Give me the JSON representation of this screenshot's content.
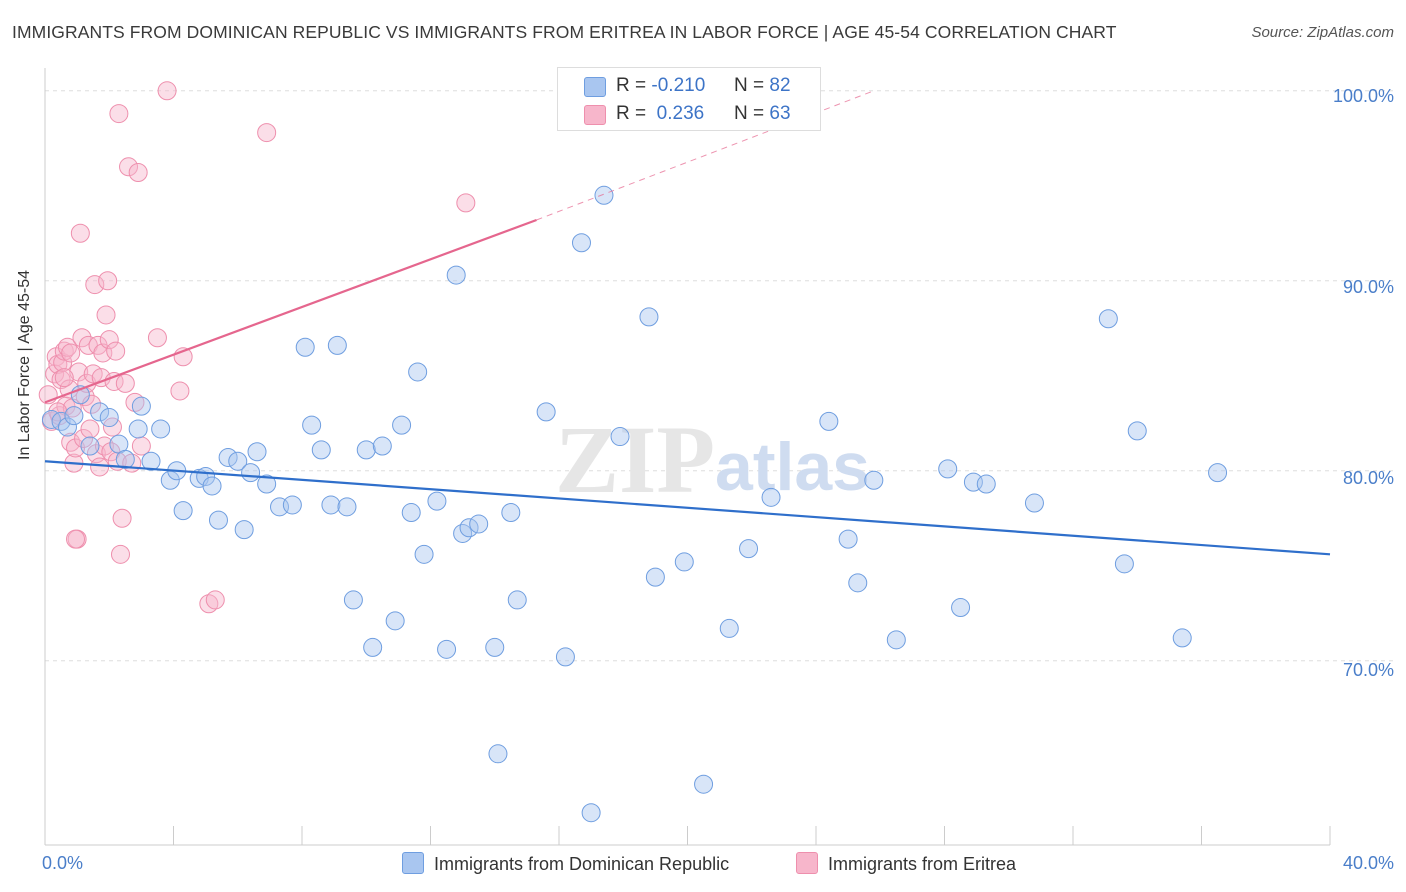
{
  "title": "IMMIGRANTS FROM DOMINICAN REPUBLIC VS IMMIGRANTS FROM ERITREA IN LABOR FORCE | AGE 45-54 CORRELATION CHART",
  "source": "Source: ZipAtlas.com",
  "watermark": {
    "zip": "ZIP",
    "atlas": "atlas"
  },
  "legend": {
    "rows": [
      {
        "r_label": "R =",
        "r_value": "-0.210",
        "n_label": "N =",
        "n_value": "82",
        "color": "#a9c6f0"
      },
      {
        "r_label": "R =",
        "r_value": "0.236",
        "n_label": "N =",
        "n_value": "63",
        "color": "#f7b6cb"
      }
    ]
  },
  "bottom_legend": {
    "series1": "Immigrants from Dominican Republic",
    "series2": "Immigrants from Eritrea"
  },
  "colors": {
    "blue_fill": "#a9c6f0",
    "blue_stroke": "#6f9ee0",
    "blue_line": "#2f6fcb",
    "pink_fill": "#f7b6cb",
    "pink_stroke": "#ee8fad",
    "pink_line": "#e5668e",
    "grid": "#dddddd",
    "tick_text": "#4a7ec9"
  },
  "chart_data": {
    "type": "scatter",
    "title": "IMMIGRANTS FROM DOMINICAN REPUBLIC VS IMMIGRANTS FROM ERITREA IN LABOR FORCE | AGE 45-54 CORRELATION CHART",
    "xlabel": "",
    "ylabel": "In Labor Force | Age 45-54",
    "xlim": [
      0,
      40
    ],
    "ylim": [
      60.3,
      101.2
    ],
    "x_tick_labels": [
      "0.0%",
      "40.0%"
    ],
    "y_ticks": [
      70,
      80,
      90,
      100
    ],
    "y_tick_labels": [
      "70.0%",
      "80.0%",
      "90.0%",
      "100.0%"
    ],
    "grid": true,
    "legend_position": "top-center",
    "series": [
      {
        "name": "Immigrants from Dominican Republic",
        "color": "#a9c6f0",
        "trend": {
          "x": [
            0,
            40
          ],
          "y": [
            80.5,
            75.6
          ],
          "style": "solid"
        },
        "points": [
          [
            0.2,
            82.7
          ],
          [
            0.5,
            82.6
          ],
          [
            0.7,
            82.3
          ],
          [
            0.9,
            82.9
          ],
          [
            1.1,
            84.0
          ],
          [
            1.4,
            81.3
          ],
          [
            1.7,
            83.1
          ],
          [
            2.0,
            82.8
          ],
          [
            2.3,
            81.4
          ],
          [
            2.5,
            80.6
          ],
          [
            2.9,
            82.2
          ],
          [
            3.0,
            83.4
          ],
          [
            3.3,
            80.5
          ],
          [
            3.6,
            82.2
          ],
          [
            3.9,
            79.5
          ],
          [
            4.1,
            80.0
          ],
          [
            4.3,
            77.9
          ],
          [
            4.8,
            79.6
          ],
          [
            5.0,
            79.7
          ],
          [
            5.2,
            79.2
          ],
          [
            5.4,
            77.4
          ],
          [
            5.7,
            80.7
          ],
          [
            6.0,
            80.5
          ],
          [
            6.2,
            76.9
          ],
          [
            6.4,
            79.9
          ],
          [
            6.6,
            81.0
          ],
          [
            6.9,
            79.3
          ],
          [
            7.3,
            78.1
          ],
          [
            7.7,
            78.2
          ],
          [
            8.1,
            86.5
          ],
          [
            8.3,
            82.4
          ],
          [
            8.6,
            81.1
          ],
          [
            8.9,
            78.2
          ],
          [
            9.1,
            86.6
          ],
          [
            9.4,
            78.1
          ],
          [
            9.6,
            73.2
          ],
          [
            10.0,
            81.1
          ],
          [
            10.2,
            70.7
          ],
          [
            10.5,
            81.3
          ],
          [
            10.9,
            72.1
          ],
          [
            11.1,
            82.4
          ],
          [
            11.4,
            77.8
          ],
          [
            11.6,
            85.2
          ],
          [
            11.8,
            75.6
          ],
          [
            12.2,
            78.4
          ],
          [
            12.5,
            70.6
          ],
          [
            12.8,
            90.3
          ],
          [
            13.0,
            76.7
          ],
          [
            13.2,
            77.0
          ],
          [
            13.5,
            77.2
          ],
          [
            14.0,
            70.7
          ],
          [
            14.1,
            65.1
          ],
          [
            14.5,
            77.8
          ],
          [
            14.7,
            73.2
          ],
          [
            15.6,
            83.1
          ],
          [
            16.2,
            70.2
          ],
          [
            16.7,
            92.0
          ],
          [
            17.0,
            62.0
          ],
          [
            17.4,
            94.5
          ],
          [
            17.9,
            81.8
          ],
          [
            18.8,
            88.1
          ],
          [
            19.0,
            74.4
          ],
          [
            19.9,
            75.2
          ],
          [
            20.5,
            63.5
          ],
          [
            21.3,
            71.7
          ],
          [
            21.9,
            75.9
          ],
          [
            22.6,
            78.6
          ],
          [
            24.4,
            82.6
          ],
          [
            25.0,
            76.4
          ],
          [
            25.3,
            74.1
          ],
          [
            25.8,
            79.5
          ],
          [
            26.5,
            71.1
          ],
          [
            28.1,
            80.1
          ],
          [
            28.5,
            72.8
          ],
          [
            28.9,
            79.4
          ],
          [
            29.3,
            79.3
          ],
          [
            30.8,
            78.3
          ],
          [
            33.1,
            88.0
          ],
          [
            33.6,
            75.1
          ],
          [
            34.0,
            82.1
          ],
          [
            35.4,
            71.2
          ],
          [
            36.5,
            79.9
          ]
        ]
      },
      {
        "name": "Immigrants from Eritrea",
        "color": "#f7b6cb",
        "trend": {
          "x": [
            0,
            15.3
          ],
          "y": [
            83.6,
            93.2
          ],
          "style": "solid",
          "extension": {
            "x": [
              15.3,
              25.8
            ],
            "y": [
              93.2,
              100.0
            ],
            "style": "dashed"
          }
        },
        "points": [
          [
            0.1,
            84.0
          ],
          [
            0.2,
            82.6
          ],
          [
            0.3,
            85.1
          ],
          [
            0.35,
            86.0
          ],
          [
            0.4,
            85.6
          ],
          [
            0.45,
            82.9
          ],
          [
            0.5,
            84.8
          ],
          [
            0.55,
            85.7
          ],
          [
            0.6,
            86.3
          ],
          [
            0.65,
            83.4
          ],
          [
            0.7,
            86.5
          ],
          [
            0.75,
            84.3
          ],
          [
            0.8,
            81.5
          ],
          [
            0.85,
            83.3
          ],
          [
            0.9,
            80.4
          ],
          [
            0.95,
            81.2
          ],
          [
            1.0,
            76.4
          ],
          [
            1.05,
            85.2
          ],
          [
            1.1,
            92.5
          ],
          [
            1.15,
            87.0
          ],
          [
            1.2,
            81.7
          ],
          [
            1.25,
            83.9
          ],
          [
            1.3,
            84.6
          ],
          [
            1.35,
            86.6
          ],
          [
            1.4,
            82.2
          ],
          [
            1.45,
            83.5
          ],
          [
            1.5,
            85.1
          ],
          [
            1.55,
            89.8
          ],
          [
            1.6,
            80.9
          ],
          [
            1.65,
            86.6
          ],
          [
            1.7,
            80.2
          ],
          [
            1.75,
            84.9
          ],
          [
            1.8,
            86.2
          ],
          [
            1.85,
            81.3
          ],
          [
            1.9,
            88.2
          ],
          [
            1.95,
            90.0
          ],
          [
            2.0,
            86.9
          ],
          [
            2.05,
            81.0
          ],
          [
            2.1,
            82.3
          ],
          [
            2.15,
            84.7
          ],
          [
            2.2,
            86.3
          ],
          [
            2.25,
            80.5
          ],
          [
            2.3,
            98.8
          ],
          [
            2.35,
            75.6
          ],
          [
            2.4,
            77.5
          ],
          [
            2.5,
            84.6
          ],
          [
            2.6,
            96.0
          ],
          [
            2.7,
            80.4
          ],
          [
            2.8,
            83.6
          ],
          [
            2.9,
            95.7
          ],
          [
            3.0,
            81.3
          ],
          [
            3.5,
            87.0
          ],
          [
            3.8,
            100.0
          ],
          [
            4.2,
            84.2
          ],
          [
            4.3,
            86.0
          ],
          [
            5.1,
            73.0
          ],
          [
            5.3,
            73.2
          ],
          [
            6.9,
            97.8
          ],
          [
            13.1,
            94.1
          ],
          [
            0.8,
            86.2
          ],
          [
            0.6,
            84.9
          ],
          [
            0.95,
            76.4
          ],
          [
            0.4,
            83.1
          ]
        ]
      }
    ]
  }
}
